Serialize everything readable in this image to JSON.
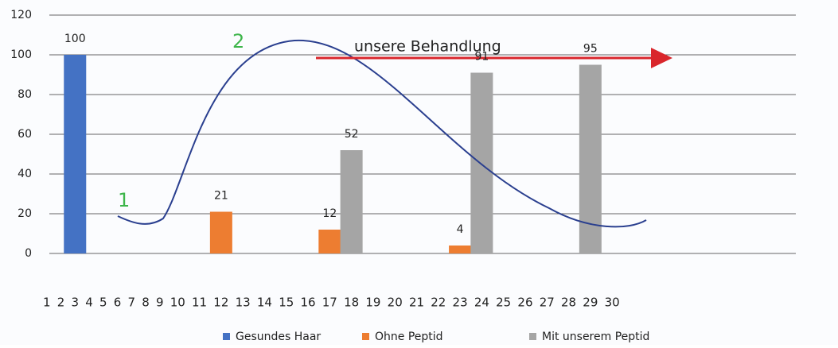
{
  "chart_data": {
    "type": "bar",
    "categories": [
      "1",
      "2",
      "3",
      "4",
      "5",
      "6",
      "7",
      "8",
      "9",
      "10",
      "11",
      "12",
      "13",
      "14",
      "15",
      "16",
      "17",
      "18",
      "19",
      "20",
      "21",
      "22",
      "23",
      "24",
      "25",
      "26",
      "27",
      "28",
      "29",
      "30"
    ],
    "series": [
      {
        "name": "Gesundes Haar",
        "color": "#4472c4",
        "values": [
          null,
          null,
          100,
          null,
          null,
          null,
          null,
          null,
          null,
          null,
          null,
          null,
          null,
          null,
          null,
          null,
          null,
          null,
          null,
          null,
          null,
          null,
          null,
          null,
          null,
          null,
          null,
          null,
          null,
          null
        ]
      },
      {
        "name": "Ohne Peptid",
        "color": "#ed7d31",
        "values": [
          null,
          null,
          null,
          null,
          null,
          null,
          null,
          null,
          null,
          null,
          null,
          21,
          null,
          null,
          null,
          null,
          12,
          null,
          null,
          null,
          null,
          null,
          4,
          null,
          null,
          null,
          null,
          null,
          null,
          null
        ]
      },
      {
        "name": "Mit unserem Peptid",
        "color": "#a5a5a5",
        "values": [
          null,
          null,
          null,
          null,
          null,
          null,
          null,
          null,
          null,
          null,
          null,
          null,
          null,
          null,
          null,
          null,
          null,
          52,
          null,
          null,
          null,
          null,
          null,
          91,
          null,
          null,
          null,
          null,
          95,
          null
        ]
      }
    ],
    "ylim": [
      0,
      120
    ],
    "yticks": [
      0,
      20,
      40,
      60,
      80,
      100,
      120
    ],
    "grid": true,
    "annotations": [
      "1",
      "2",
      "unsere Behandlung"
    ]
  }
}
